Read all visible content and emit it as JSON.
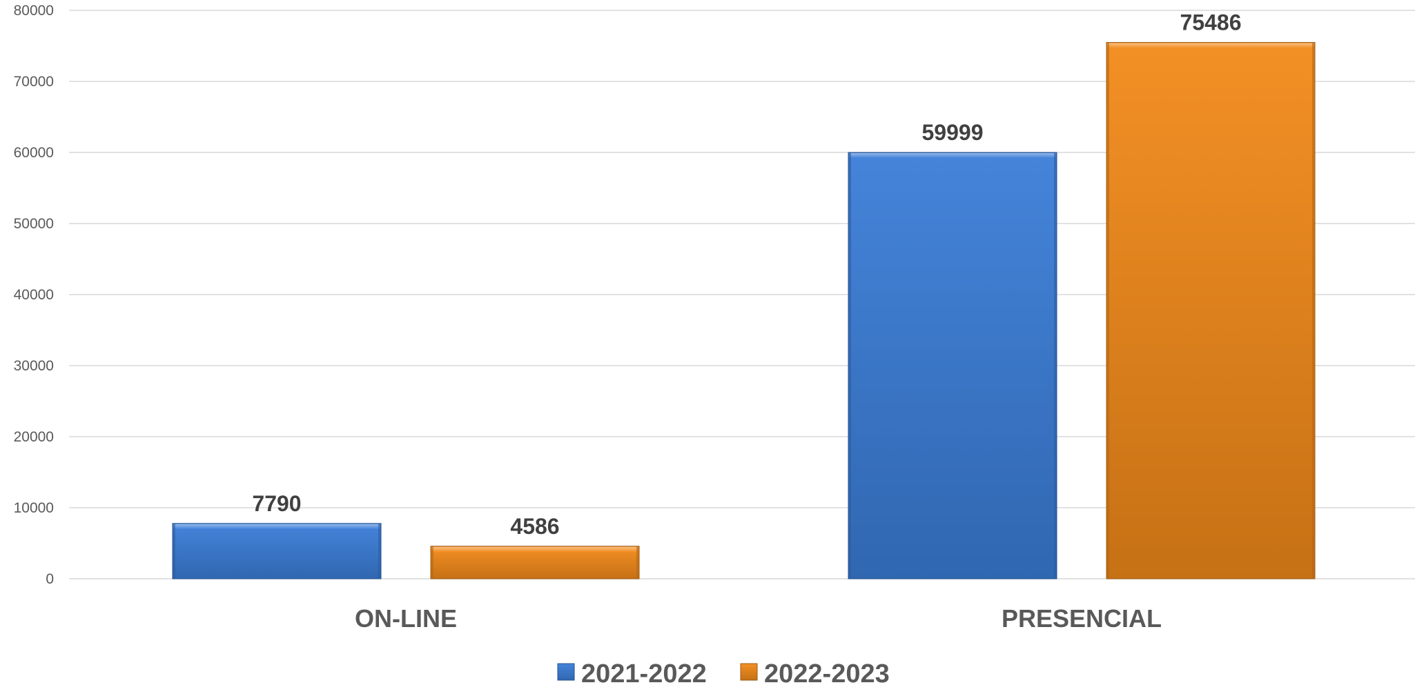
{
  "chart_data": {
    "type": "bar",
    "categories": [
      "ON-LINE",
      "PRESENCIAL"
    ],
    "series": [
      {
        "name": "2021-2022",
        "values": [
          7790,
          59999
        ],
        "color": "#3B7DD8"
      },
      {
        "name": "2022-2023",
        "values": [
          4586,
          75486
        ],
        "color": "#F28A1A"
      }
    ],
    "ylim": [
      0,
      80000
    ],
    "yticks": [
      0,
      10000,
      20000,
      30000,
      40000,
      50000,
      60000,
      70000,
      80000
    ],
    "grid": true,
    "legend_position": "bottom",
    "title": "",
    "xlabel": "",
    "ylabel": ""
  }
}
